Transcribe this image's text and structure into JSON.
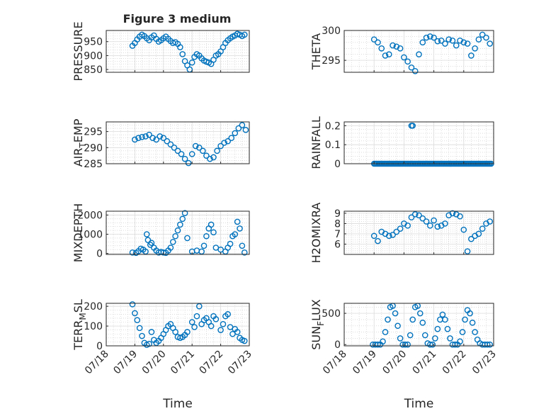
{
  "page": {
    "figure_title": "Figure 3 medium",
    "marker_color": "#0072bd"
  },
  "chart_data": [
    {
      "type": "scatter",
      "title": "Figure 3 medium",
      "ylabel": "PRESSURE",
      "ylim": [
        840,
        990
      ],
      "yticks": [
        850,
        900,
        950
      ],
      "grid": "on",
      "minor_grid": "on",
      "x": [
        "07/18 22:00",
        "07/19 00:00",
        "07/19 02:00",
        "07/19 04:00",
        "07/19 06:00",
        "07/19 08:00",
        "07/19 10:00",
        "07/19 12:00",
        "07/19 14:00",
        "07/19 16:00",
        "07/19 18:00",
        "07/19 20:00",
        "07/19 22:00",
        "07/20 00:00",
        "07/20 02:00",
        "07/20 04:00",
        "07/20 06:00",
        "07/20 08:00",
        "07/20 10:00",
        "07/20 12:00",
        "07/20 14:00",
        "07/20 16:00",
        "07/20 18:00",
        "07/20 20:00",
        "07/20 22:00",
        "07/21 00:00",
        "07/21 02:00",
        "07/21 04:00",
        "07/21 06:00",
        "07/21 08:00",
        "07/21 10:00",
        "07/21 12:00",
        "07/21 14:00",
        "07/21 16:00",
        "07/21 18:00",
        "07/21 20:00",
        "07/21 22:00",
        "07/22 00:00",
        "07/22 02:00",
        "07/22 04:00",
        "07/22 06:00",
        "07/22 08:00",
        "07/22 10:00",
        "07/22 12:00",
        "07/22 14:00",
        "07/22 16:00",
        "07/22 18:00",
        "07/22 20:00"
      ],
      "values": [
        935,
        945,
        958,
        968,
        975,
        970,
        962,
        955,
        965,
        972,
        960,
        950,
        955,
        962,
        968,
        960,
        952,
        945,
        948,
        942,
        930,
        905,
        880,
        865,
        850,
        875,
        895,
        905,
        900,
        890,
        882,
        878,
        875,
        870,
        885,
        900,
        905,
        915,
        930,
        945,
        955,
        962,
        968,
        972,
        978,
        975,
        970,
        975
      ]
    },
    {
      "type": "scatter",
      "ylabel": "THETA",
      "ylim": [
        293,
        300
      ],
      "yticks": [
        295,
        300
      ],
      "grid": "on",
      "minor_grid": "on",
      "x": [
        "07/19 00:00",
        "07/19 03:00",
        "07/19 06:00",
        "07/19 09:00",
        "07/19 12:00",
        "07/19 15:00",
        "07/19 18:00",
        "07/19 21:00",
        "07/20 00:00",
        "07/20 03:00",
        "07/20 06:00",
        "07/20 09:00",
        "07/20 12:00",
        "07/20 15:00",
        "07/20 18:00",
        "07/20 21:00",
        "07/21 00:00",
        "07/21 03:00",
        "07/21 06:00",
        "07/21 09:00",
        "07/21 12:00",
        "07/21 15:00",
        "07/21 18:00",
        "07/21 21:00",
        "07/22 00:00",
        "07/22 03:00",
        "07/22 06:00",
        "07/22 09:00",
        "07/22 12:00",
        "07/22 15:00",
        "07/22 18:00",
        "07/22 21:00"
      ],
      "values": [
        298.5,
        298.0,
        297.0,
        295.8,
        296.0,
        297.5,
        297.3,
        297.0,
        295.5,
        294.8,
        293.8,
        293.2,
        296.0,
        298.0,
        298.8,
        299.0,
        298.8,
        298.2,
        298.3,
        297.8,
        298.5,
        298.3,
        297.5,
        298.3,
        298.0,
        297.8,
        295.8,
        297.0,
        298.5,
        299.3,
        298.8,
        297.8
      ]
    },
    {
      "type": "scatter",
      "ylabel": "AIR_TEMP",
      "ylim": [
        285,
        298
      ],
      "yticks": [
        285,
        290,
        295
      ],
      "grid": "on",
      "minor_grid": "on",
      "x": [
        "07/19 00:00",
        "07/19 03:00",
        "07/19 06:00",
        "07/19 09:00",
        "07/19 12:00",
        "07/19 15:00",
        "07/19 18:00",
        "07/19 21:00",
        "07/20 00:00",
        "07/20 03:00",
        "07/20 06:00",
        "07/20 09:00",
        "07/20 12:00",
        "07/20 15:00",
        "07/20 18:00",
        "07/20 21:00",
        "07/21 00:00",
        "07/21 03:00",
        "07/21 06:00",
        "07/21 09:00",
        "07/21 12:00",
        "07/21 15:00",
        "07/21 18:00",
        "07/21 21:00",
        "07/22 00:00",
        "07/22 03:00",
        "07/22 06:00",
        "07/22 09:00",
        "07/22 12:00",
        "07/22 15:00",
        "07/22 18:00",
        "07/22 21:00"
      ],
      "values": [
        292.5,
        293.0,
        293.3,
        293.5,
        294.0,
        293.0,
        292.5,
        293.5,
        293.0,
        292.0,
        291.0,
        290.0,
        289.0,
        288.0,
        286.5,
        285.2,
        288.0,
        290.5,
        290.0,
        289.0,
        287.5,
        286.5,
        287.0,
        289.0,
        290.5,
        291.5,
        292.0,
        293.0,
        294.5,
        296.0,
        297.0,
        295.5
      ]
    },
    {
      "type": "scatter",
      "ylabel": "RAINFALL",
      "ylim": [
        0,
        0.22
      ],
      "yticks": [
        0,
        0.1,
        0.2
      ],
      "grid": "on",
      "minor_grid": "on",
      "x_range": [
        "07/19 00:00",
        "07/22 22:00"
      ],
      "x_step_hours": 1,
      "values_note_free": true,
      "value_default": 0,
      "spikes": [
        {
          "x": "07/20 06:00",
          "value": 0.2
        },
        {
          "x": "07/20 07:00",
          "value": 0.2
        }
      ]
    },
    {
      "type": "scatter",
      "ylabel": "MIXDEPTH",
      "ylim": [
        -50,
        2200
      ],
      "yticks": [
        0,
        1000,
        2000
      ],
      "grid": "on",
      "minor_grid": "on",
      "x": [
        "07/18 22:00",
        "07/19 01:00",
        "07/19 03:00",
        "07/19 05:00",
        "07/19 07:00",
        "07/19 09:00",
        "07/19 10:00",
        "07/19 11:00",
        "07/19 13:00",
        "07/19 14:00",
        "07/19 16:00",
        "07/19 18:00",
        "07/19 20:00",
        "07/19 22:00",
        "07/20 00:00",
        "07/20 02:00",
        "07/20 04:00",
        "07/20 06:00",
        "07/20 08:00",
        "07/20 10:00",
        "07/20 12:00",
        "07/20 14:00",
        "07/20 16:00",
        "07/20 18:00",
        "07/20 20:00",
        "07/21 00:00",
        "07/21 04:00",
        "07/21 08:00",
        "07/21 10:00",
        "07/21 12:00",
        "07/21 14:00",
        "07/21 16:00",
        "07/21 18:00",
        "07/21 20:00",
        "07/22 00:00",
        "07/22 04:00",
        "07/22 06:00",
        "07/22 08:00",
        "07/22 10:00",
        "07/22 12:00",
        "07/22 14:00",
        "07/22 16:00",
        "07/22 18:00",
        "07/22 20:00"
      ],
      "values": [
        50,
        30,
        120,
        250,
        200,
        100,
        1000,
        700,
        450,
        550,
        300,
        150,
        50,
        80,
        50,
        30,
        150,
        300,
        600,
        900,
        1200,
        1500,
        1800,
        2100,
        800,
        100,
        150,
        100,
        400,
        900,
        1300,
        1500,
        1100,
        300,
        200,
        100,
        300,
        500,
        900,
        1000,
        1650,
        1300,
        400,
        50
      ]
    },
    {
      "type": "scatter",
      "ylabel": "H2OMIXRA",
      "ylim": [
        5,
        9.2
      ],
      "yticks": [
        6,
        7,
        8,
        9
      ],
      "grid": "on",
      "minor_grid": "on",
      "x": [
        "07/19 00:00",
        "07/19 03:00",
        "07/19 06:00",
        "07/19 09:00",
        "07/19 12:00",
        "07/19 15:00",
        "07/19 18:00",
        "07/19 21:00",
        "07/20 00:00",
        "07/20 03:00",
        "07/20 06:00",
        "07/20 09:00",
        "07/20 12:00",
        "07/20 15:00",
        "07/20 18:00",
        "07/20 21:00",
        "07/21 00:00",
        "07/21 03:00",
        "07/21 06:00",
        "07/21 09:00",
        "07/21 12:00",
        "07/21 15:00",
        "07/21 18:00",
        "07/21 21:00",
        "07/22 00:00",
        "07/22 03:00",
        "07/22 06:00",
        "07/22 09:00",
        "07/22 12:00",
        "07/22 15:00",
        "07/22 18:00",
        "07/22 21:00"
      ],
      "values": [
        6.8,
        6.3,
        7.2,
        7.0,
        6.8,
        6.9,
        7.2,
        7.5,
        8.0,
        7.8,
        8.6,
        8.9,
        8.8,
        8.5,
        8.2,
        7.8,
        8.3,
        7.7,
        7.8,
        8.0,
        8.8,
        9.0,
        8.9,
        8.7,
        7.4,
        5.3,
        6.5,
        6.8,
        7.0,
        7.5,
        8.0,
        8.2
      ]
    },
    {
      "type": "scatter",
      "ylabel": "TERR_MSL",
      "ylim": [
        0,
        215
      ],
      "yticks": [
        0,
        100,
        200
      ],
      "grid": "on",
      "minor_grid": "on",
      "x": [
        "07/18 22:00",
        "07/19 00:00",
        "07/19 02:00",
        "07/19 04:00",
        "07/19 06:00",
        "07/19 08:00",
        "07/19 10:00",
        "07/19 12:00",
        "07/19 14:00",
        "07/19 16:00",
        "07/19 18:00",
        "07/19 20:00",
        "07/19 22:00",
        "07/20 00:00",
        "07/20 02:00",
        "07/20 04:00",
        "07/20 06:00",
        "07/20 08:00",
        "07/20 10:00",
        "07/20 12:00",
        "07/20 14:00",
        "07/20 16:00",
        "07/20 18:00",
        "07/20 20:00",
        "07/21 00:00",
        "07/21 02:00",
        "07/21 04:00",
        "07/21 06:00",
        "07/21 08:00",
        "07/21 10:00",
        "07/21 12:00",
        "07/21 14:00",
        "07/21 16:00",
        "07/21 18:00",
        "07/21 20:00",
        "07/22 00:00",
        "07/22 02:00",
        "07/22 04:00",
        "07/22 06:00",
        "07/22 08:00",
        "07/22 10:00",
        "07/22 12:00",
        "07/22 14:00",
        "07/22 16:00",
        "07/22 18:00",
        "07/22 20:00"
      ],
      "values": [
        210,
        165,
        130,
        90,
        50,
        15,
        5,
        10,
        70,
        30,
        15,
        25,
        40,
        60,
        80,
        100,
        110,
        90,
        70,
        45,
        40,
        45,
        55,
        70,
        120,
        95,
        150,
        200,
        110,
        130,
        140,
        120,
        100,
        150,
        135,
        80,
        110,
        150,
        160,
        95,
        60,
        85,
        70,
        40,
        30,
        25
      ]
    },
    {
      "type": "scatter",
      "ylabel": "SUN_FLUX",
      "ylim": [
        -20,
        660
      ],
      "yticks": [
        0,
        500
      ],
      "grid": "on",
      "minor_grid": "on",
      "xlabel": "Time",
      "x": [
        "07/18 23:00",
        "07/19 01:00",
        "07/19 03:00",
        "07/19 05:00",
        "07/19 07:00",
        "07/19 09:00",
        "07/19 11:00",
        "07/19 13:00",
        "07/19 15:00",
        "07/19 17:00",
        "07/19 19:00",
        "07/19 21:00",
        "07/19 23:00",
        "07/20 01:00",
        "07/20 03:00",
        "07/20 05:00",
        "07/20 07:00",
        "07/20 09:00",
        "07/20 11:00",
        "07/20 13:00",
        "07/20 15:00",
        "07/20 17:00",
        "07/20 19:00",
        "07/20 21:00",
        "07/20 23:00",
        "07/21 01:00",
        "07/21 03:00",
        "07/21 05:00",
        "07/21 07:00",
        "07/21 09:00",
        "07/21 11:00",
        "07/21 13:00",
        "07/21 15:00",
        "07/21 17:00",
        "07/21 19:00",
        "07/21 21:00",
        "07/21 23:00",
        "07/22 01:00",
        "07/22 03:00",
        "07/22 05:00",
        "07/22 07:00",
        "07/22 09:00",
        "07/22 11:00",
        "07/22 13:00",
        "07/22 15:00",
        "07/22 17:00",
        "07/22 19:00",
        "07/22 21:00"
      ],
      "values": [
        0,
        0,
        0,
        0,
        50,
        200,
        400,
        600,
        620,
        500,
        300,
        100,
        0,
        0,
        0,
        150,
        400,
        600,
        620,
        500,
        350,
        150,
        20,
        0,
        0,
        100,
        250,
        400,
        480,
        400,
        250,
        100,
        0,
        0,
        0,
        50,
        200,
        400,
        550,
        500,
        350,
        200,
        80,
        20,
        0,
        0,
        0,
        0
      ]
    }
  ],
  "x_axis": {
    "ticks": [
      "07/18",
      "07/19",
      "07/20",
      "07/21",
      "07/22",
      "07/23"
    ],
    "label": "Time",
    "range": [
      "07/18 00:00",
      "07/23 00:00"
    ]
  }
}
